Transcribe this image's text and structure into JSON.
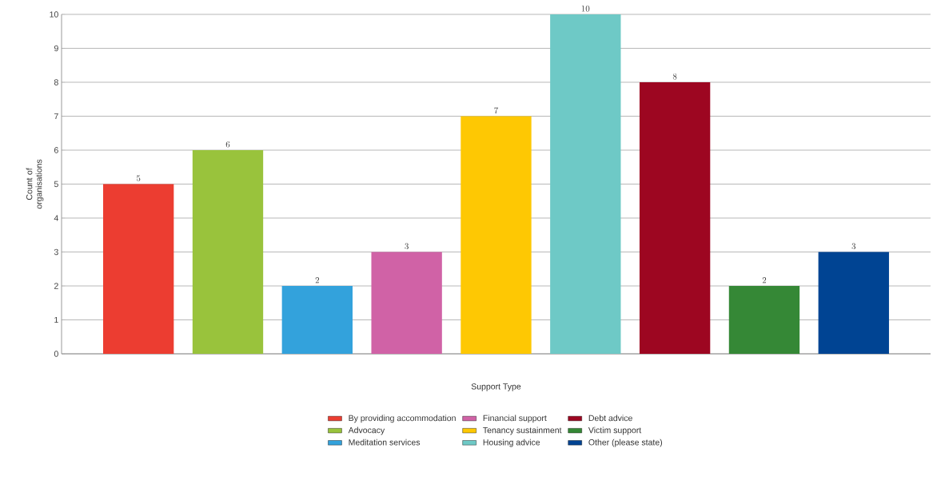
{
  "chart_data": {
    "type": "bar",
    "xlabel": "Support Type",
    "ylabel": "Count of organisations",
    "categories": [
      null,
      null,
      null,
      null,
      null,
      null,
      null,
      null,
      null
    ],
    "stacked": true,
    "series": [
      {
        "name": "By providing accommodation",
        "color": "#ec3d31",
        "values": [
          5,
          null,
          null,
          null,
          null,
          null,
          null,
          null,
          null
        ]
      },
      {
        "name": "Advocacy",
        "color": "#99c33c",
        "values": [
          null,
          6,
          null,
          null,
          null,
          null,
          null,
          null,
          null
        ]
      },
      {
        "name": "Meditation services",
        "color": "#33a2dc",
        "values": [
          null,
          null,
          2,
          null,
          null,
          null,
          null,
          null,
          null
        ]
      },
      {
        "name": "Financial support",
        "color": "#d062a6",
        "values": [
          null,
          null,
          null,
          3,
          null,
          null,
          null,
          null,
          null
        ]
      },
      {
        "name": "Tenancy sustainment",
        "color": "#fec803",
        "values": [
          null,
          null,
          null,
          null,
          7,
          null,
          null,
          null,
          null
        ]
      },
      {
        "name": "Housing advice",
        "color": "#6ec9c6",
        "values": [
          null,
          null,
          null,
          null,
          null,
          10,
          null,
          null,
          null
        ]
      },
      {
        "name": "Debt advice",
        "color": "#9d0621",
        "values": [
          null,
          null,
          null,
          null,
          null,
          null,
          8,
          null,
          null
        ]
      },
      {
        "name": "Victim support",
        "color": "#358836",
        "values": [
          null,
          null,
          null,
          null,
          null,
          null,
          null,
          2,
          null
        ]
      },
      {
        "name": "Other (please state)",
        "color": "#004493",
        "values": [
          null,
          null,
          null,
          null,
          null,
          null,
          null,
          null,
          3
        ]
      }
    ],
    "ylim": [
      0,
      10
    ],
    "yticks": [
      0,
      1,
      2,
      3,
      4,
      5,
      6,
      7,
      8,
      9,
      10
    ],
    "grid": "y",
    "legend": "bottom",
    "data_labels": true
  }
}
